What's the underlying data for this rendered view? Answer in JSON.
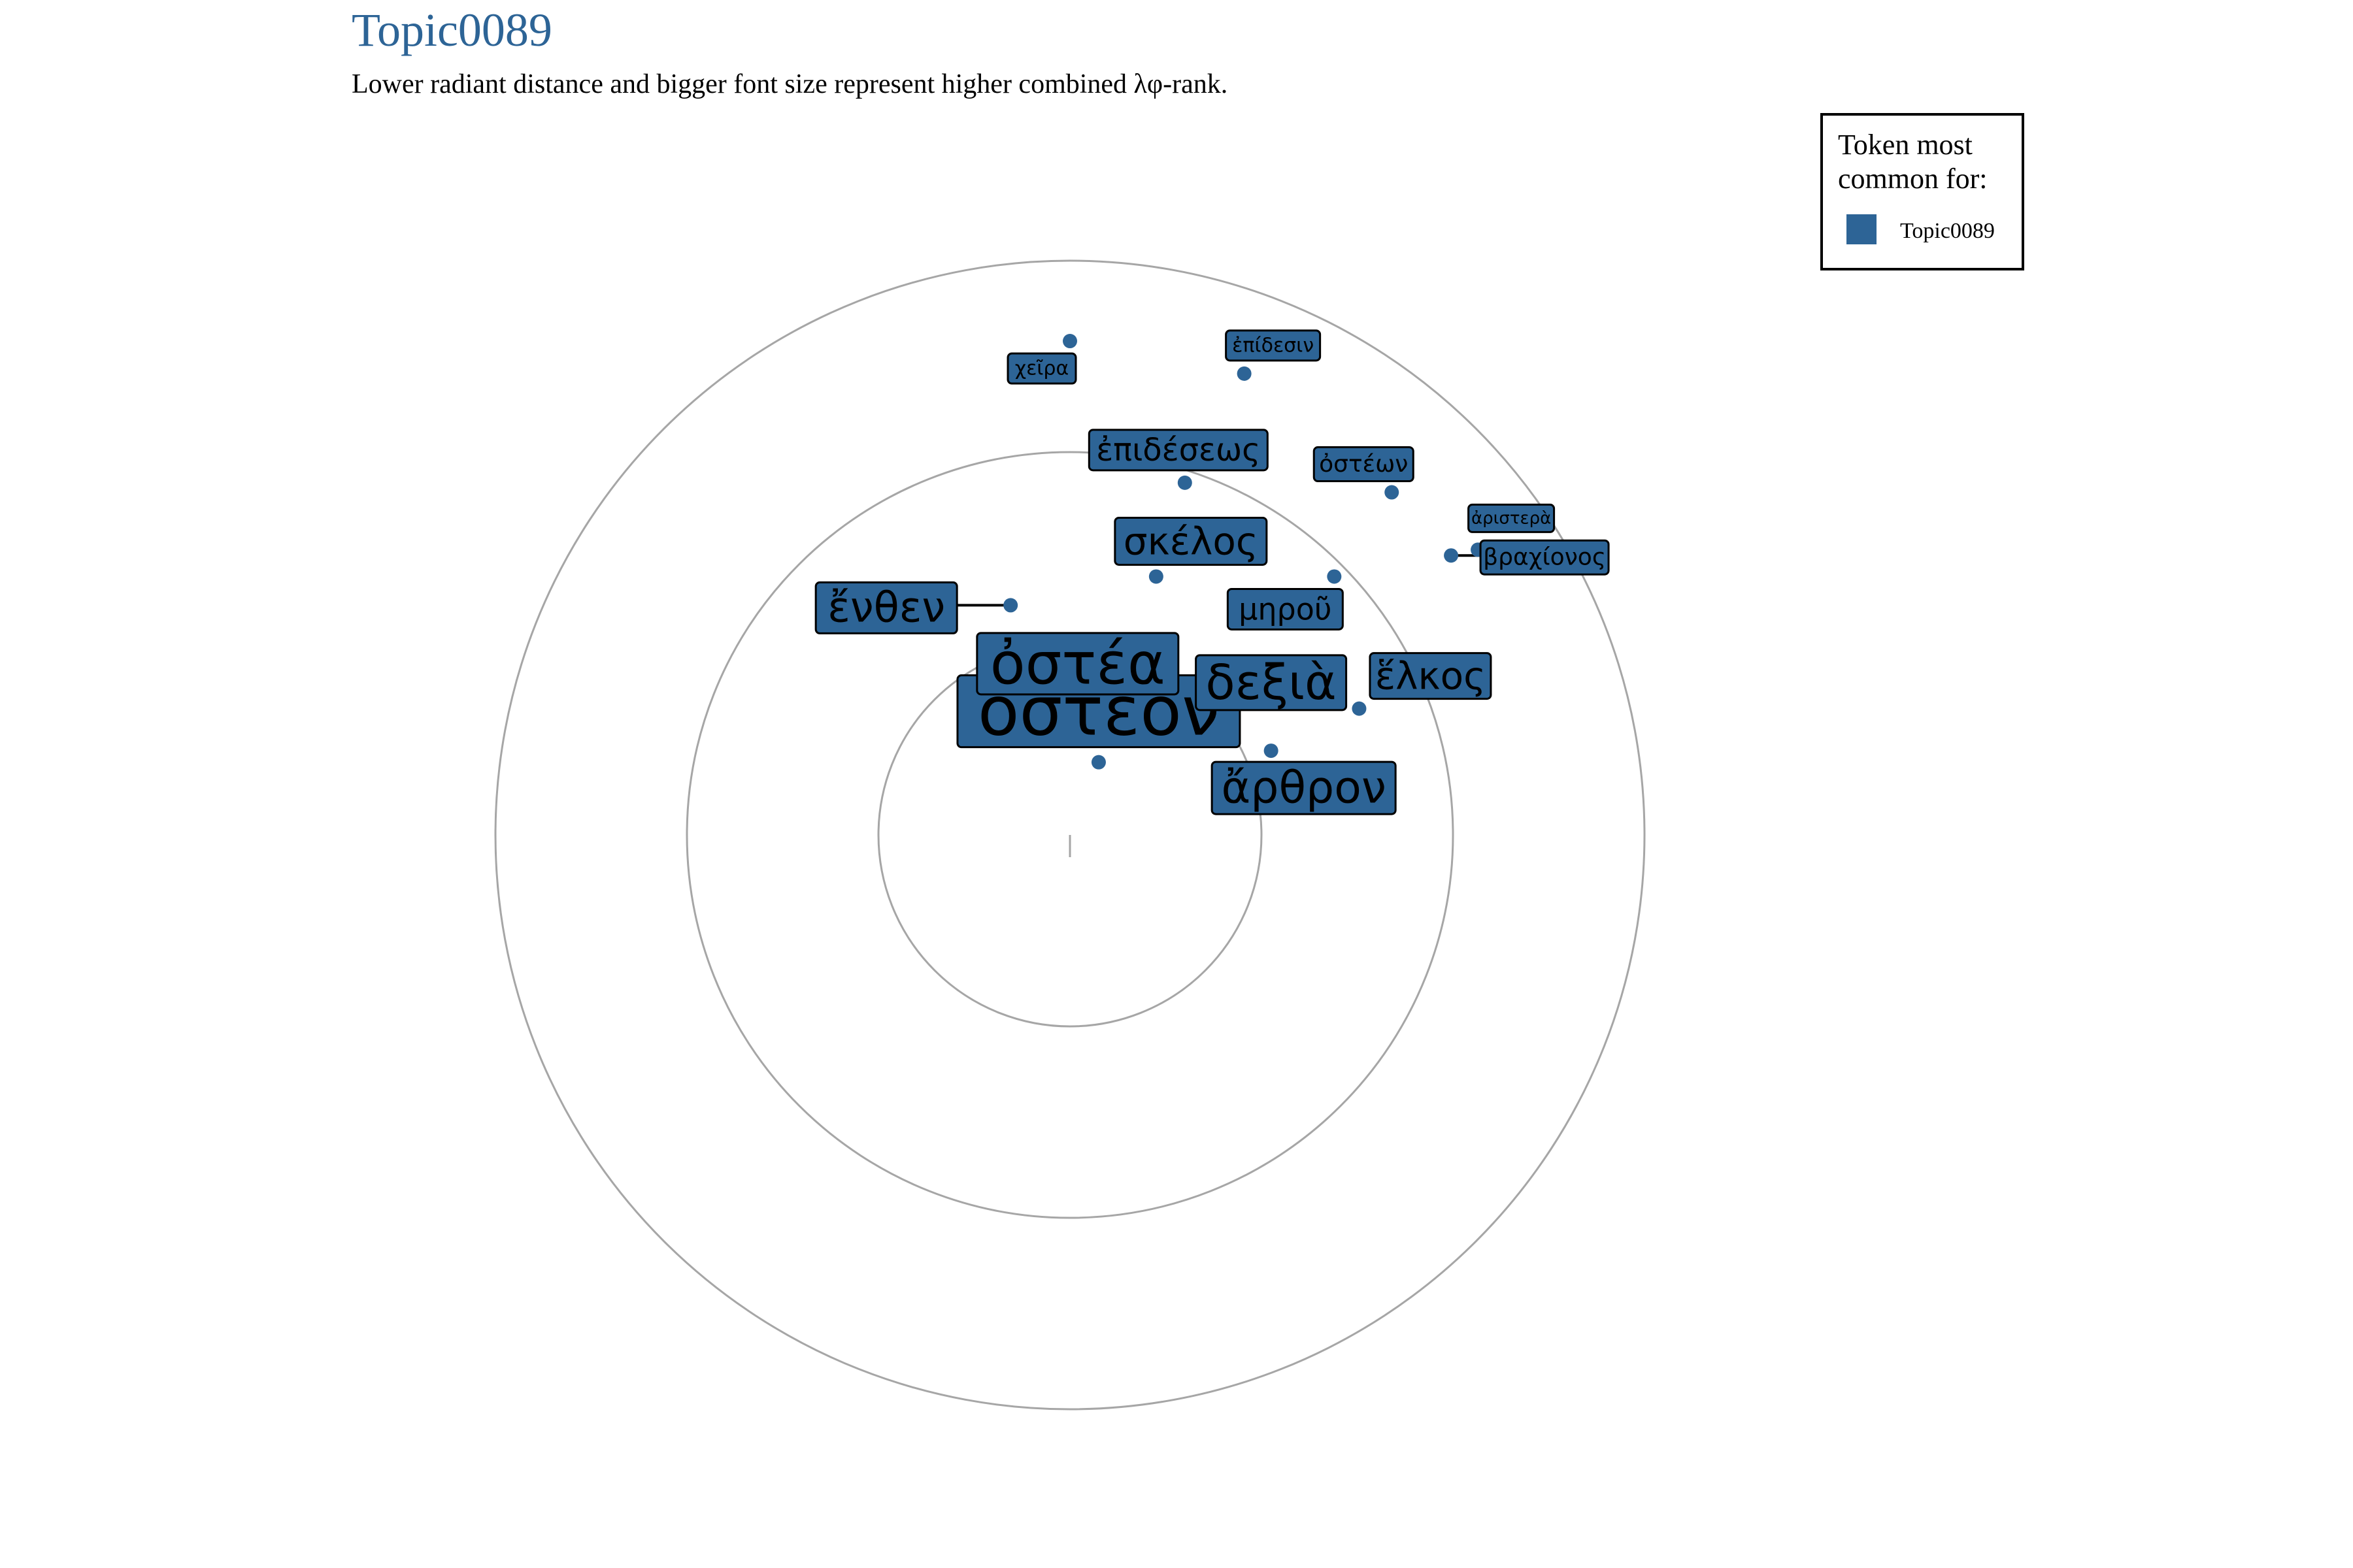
{
  "chart_data": {
    "type": "scatter",
    "title": "Topic0089",
    "subtitle": "Lower radiant distance and bigger font size represent higher combined λφ-rank.",
    "legend": {
      "title_lines": [
        "Token most",
        "common for:"
      ],
      "entries": [
        {
          "name": "Topic0089",
          "color": "#2d6496"
        }
      ],
      "placement": "top-right"
    },
    "accent_color": "#2d6496",
    "ring_color": "#a6a6a6",
    "grid": true,
    "rlim": [
      0,
      3
    ],
    "rings": [
      1,
      2,
      3
    ],
    "points": [
      {
        "token": "ὀστέον",
        "x": 0.15,
        "y": 0.38,
        "size": 2.4
      },
      {
        "token": "ὀστέα",
        "x": 0.31,
        "y": 0.55,
        "size": 2.0
      },
      {
        "token": "δεξιὰ",
        "x": 0.77,
        "y": 0.55,
        "size": 1.6
      },
      {
        "token": "ἄρθρον",
        "x": 1.05,
        "y": 0.44,
        "size": 1.5
      },
      {
        "token": "ἕλκος",
        "x": 1.51,
        "y": 0.66,
        "size": 1.3
      },
      {
        "token": "ἔνθεν",
        "x": -0.31,
        "y": 1.2,
        "size": 1.5
      },
      {
        "token": "σκέλος",
        "x": 0.45,
        "y": 1.35,
        "size": 1.4
      },
      {
        "token": "μηροῦ",
        "x": 1.38,
        "y": 1.35,
        "size": 1.1
      },
      {
        "token": "ἐπιδέσεως",
        "x": 0.6,
        "y": 1.84,
        "size": 1.2
      },
      {
        "token": "ὀστέων",
        "x": 1.68,
        "y": 1.79,
        "size": 0.95
      },
      {
        "token": "βραχίονος",
        "x": 1.99,
        "y": 1.46,
        "size": 0.95
      },
      {
        "token": "ἀριστερὰ",
        "x": 2.13,
        "y": 1.49,
        "size": 0.75
      },
      {
        "token": "ἐπίδεσιν",
        "x": 0.91,
        "y": 2.41,
        "size": 0.8
      },
      {
        "token": "χεῖρα",
        "x": 0.0,
        "y": 2.58,
        "size": 0.8
      }
    ]
  }
}
